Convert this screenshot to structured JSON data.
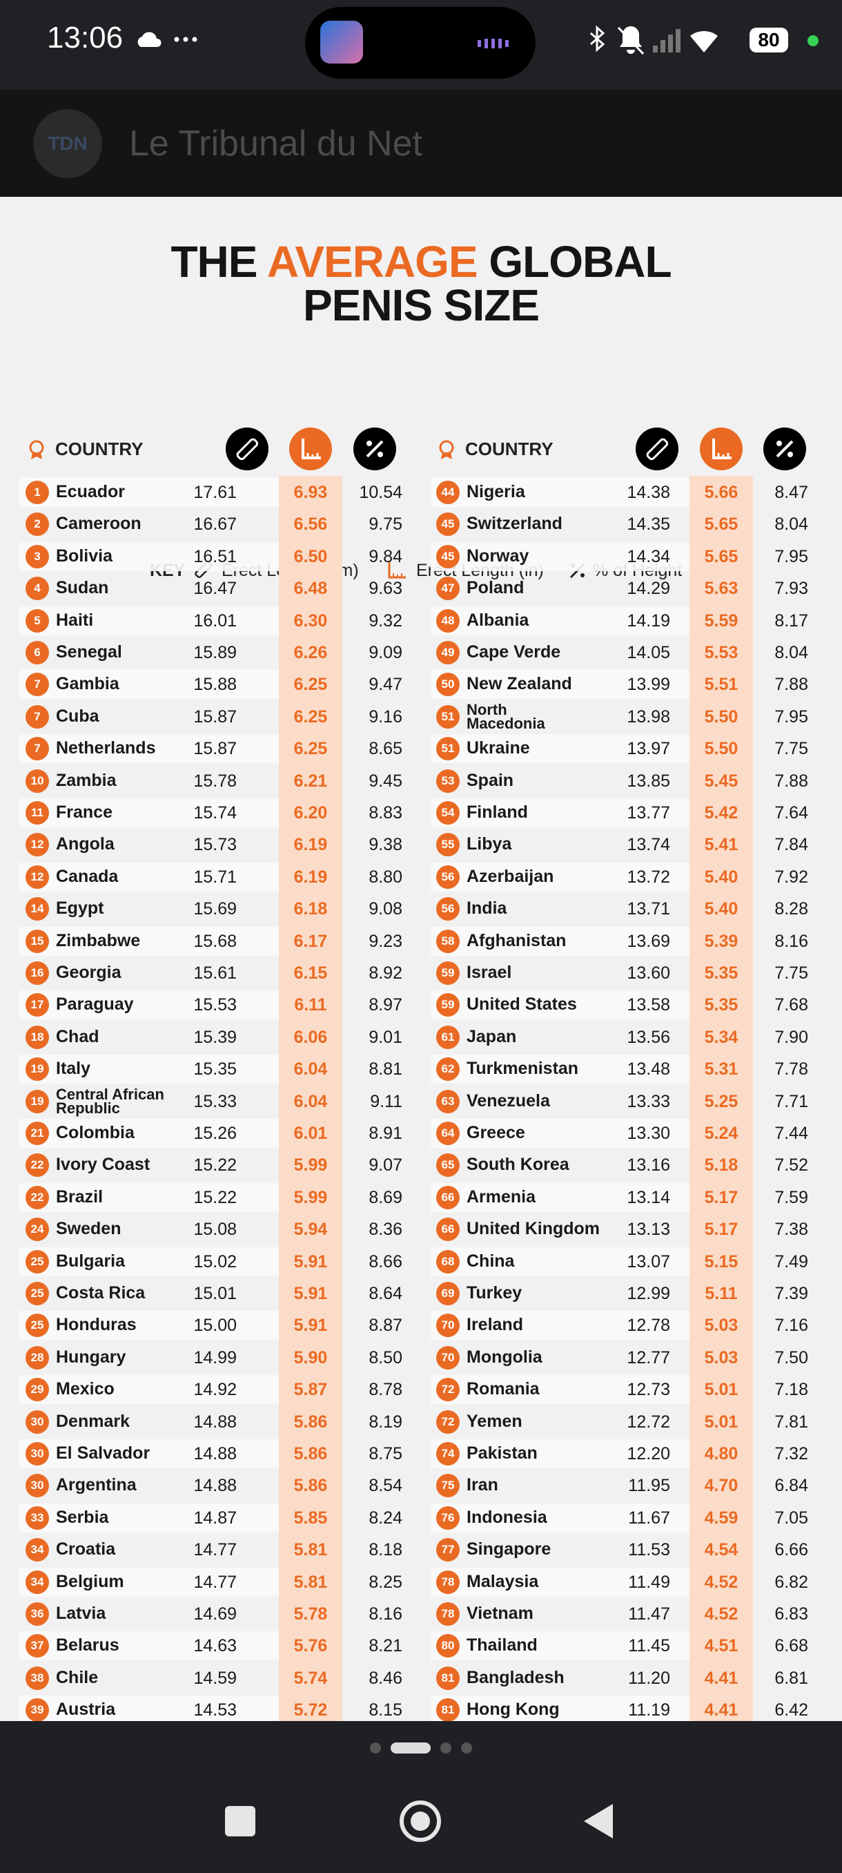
{
  "status_bar": {
    "time": "13:06",
    "battery": "80"
  },
  "app_bar": {
    "logo": "TDN",
    "title": "Le Tribunal du Net"
  },
  "infographic": {
    "title": {
      "part1": "THE",
      "highlight": "AVERAGE",
      "part2": "GLOBAL",
      "line2": "PENIS SIZE"
    },
    "key": {
      "label": "KEY",
      "items": [
        "Erect Length (cm)",
        "Erect Length (in)",
        "% of Height"
      ]
    },
    "column_header": "COUNTRY",
    "left_rows": [
      [
        "1",
        "Ecuador",
        "17.61",
        "6.93",
        "10.54"
      ],
      [
        "2",
        "Cameroon",
        "16.67",
        "6.56",
        "9.75"
      ],
      [
        "3",
        "Bolivia",
        "16.51",
        "6.50",
        "9.84"
      ],
      [
        "4",
        "Sudan",
        "16.47",
        "6.48",
        "9.63"
      ],
      [
        "5",
        "Haiti",
        "16.01",
        "6.30",
        "9.32"
      ],
      [
        "6",
        "Senegal",
        "15.89",
        "6.26",
        "9.09"
      ],
      [
        "7",
        "Gambia",
        "15.88",
        "6.25",
        "9.47"
      ],
      [
        "7",
        "Cuba",
        "15.87",
        "6.25",
        "9.16"
      ],
      [
        "7",
        "Netherlands",
        "15.87",
        "6.25",
        "8.65"
      ],
      [
        "10",
        "Zambia",
        "15.78",
        "6.21",
        "9.45"
      ],
      [
        "11",
        "France",
        "15.74",
        "6.20",
        "8.83"
      ],
      [
        "12",
        "Angola",
        "15.73",
        "6.19",
        "9.38"
      ],
      [
        "12",
        "Canada",
        "15.71",
        "6.19",
        "8.80"
      ],
      [
        "14",
        "Egypt",
        "15.69",
        "6.18",
        "9.08"
      ],
      [
        "15",
        "Zimbabwe",
        "15.68",
        "6.17",
        "9.23"
      ],
      [
        "16",
        "Georgia",
        "15.61",
        "6.15",
        "8.92"
      ],
      [
        "17",
        "Paraguay",
        "15.53",
        "6.11",
        "8.97"
      ],
      [
        "18",
        "Chad",
        "15.39",
        "6.06",
        "9.01"
      ],
      [
        "19",
        "Italy",
        "15.35",
        "6.04",
        "8.81"
      ],
      [
        "19",
        "Central African Republic",
        "15.33",
        "6.04",
        "9.11"
      ],
      [
        "21",
        "Colombia",
        "15.26",
        "6.01",
        "8.91"
      ],
      [
        "22",
        "Ivory Coast",
        "15.22",
        "5.99",
        "9.07"
      ],
      [
        "22",
        "Brazil",
        "15.22",
        "5.99",
        "8.69"
      ],
      [
        "24",
        "Sweden",
        "15.08",
        "5.94",
        "8.36"
      ],
      [
        "25",
        "Bulgaria",
        "15.02",
        "5.91",
        "8.66"
      ],
      [
        "25",
        "Costa Rica",
        "15.01",
        "5.91",
        "8.64"
      ],
      [
        "25",
        "Honduras",
        "15.00",
        "5.91",
        "8.87"
      ],
      [
        "28",
        "Hungary",
        "14.99",
        "5.90",
        "8.50"
      ],
      [
        "29",
        "Mexico",
        "14.92",
        "5.87",
        "8.78"
      ],
      [
        "30",
        "Denmark",
        "14.88",
        "5.86",
        "8.19"
      ],
      [
        "30",
        "El Salvador",
        "14.88",
        "5.86",
        "8.75"
      ],
      [
        "30",
        "Argentina",
        "14.88",
        "5.86",
        "8.54"
      ],
      [
        "33",
        "Serbia",
        "14.87",
        "5.85",
        "8.24"
      ],
      [
        "34",
        "Croatia",
        "14.77",
        "5.81",
        "8.18"
      ],
      [
        "34",
        "Belgium",
        "14.77",
        "5.81",
        "8.25"
      ],
      [
        "36",
        "Latvia",
        "14.69",
        "5.78",
        "8.16"
      ],
      [
        "37",
        "Belarus",
        "14.63",
        "5.76",
        "8.21"
      ],
      [
        "38",
        "Chile",
        "14.59",
        "5.74",
        "8.46"
      ],
      [
        "39",
        "Austria",
        "14.53",
        "5.72",
        "8.15"
      ]
    ],
    "right_rows": [
      [
        "44",
        "Nigeria",
        "14.38",
        "5.66",
        "8.47"
      ],
      [
        "45",
        "Switzerland",
        "14.35",
        "5.65",
        "8.04"
      ],
      [
        "45",
        "Norway",
        "14.34",
        "5.65",
        "7.95"
      ],
      [
        "47",
        "Poland",
        "14.29",
        "5.63",
        "7.93"
      ],
      [
        "48",
        "Albania",
        "14.19",
        "5.59",
        "8.17"
      ],
      [
        "49",
        "Cape Verde",
        "14.05",
        "5.53",
        "8.04"
      ],
      [
        "50",
        "New Zealand",
        "13.99",
        "5.51",
        "7.88"
      ],
      [
        "51",
        "North Macedonia",
        "13.98",
        "5.50",
        "7.95"
      ],
      [
        "51",
        "Ukraine",
        "13.97",
        "5.50",
        "7.75"
      ],
      [
        "53",
        "Spain",
        "13.85",
        "5.45",
        "7.88"
      ],
      [
        "54",
        "Finland",
        "13.77",
        "5.42",
        "7.64"
      ],
      [
        "55",
        "Libya",
        "13.74",
        "5.41",
        "7.84"
      ],
      [
        "56",
        "Azerbaijan",
        "13.72",
        "5.40",
        "7.92"
      ],
      [
        "56",
        "India",
        "13.71",
        "5.40",
        "8.28"
      ],
      [
        "58",
        "Afghanistan",
        "13.69",
        "5.39",
        "8.16"
      ],
      [
        "59",
        "Israel",
        "13.60",
        "5.35",
        "7.75"
      ],
      [
        "59",
        "United States",
        "13.58",
        "5.35",
        "7.68"
      ],
      [
        "61",
        "Japan",
        "13.56",
        "5.34",
        "7.90"
      ],
      [
        "62",
        "Turkmenistan",
        "13.48",
        "5.31",
        "7.78"
      ],
      [
        "63",
        "Venezuela",
        "13.33",
        "5.25",
        "7.71"
      ],
      [
        "64",
        "Greece",
        "13.30",
        "5.24",
        "7.44"
      ],
      [
        "65",
        "South Korea",
        "13.16",
        "5.18",
        "7.52"
      ],
      [
        "66",
        "Armenia",
        "13.14",
        "5.17",
        "7.59"
      ],
      [
        "66",
        "United Kingdom",
        "13.13",
        "5.17",
        "7.38"
      ],
      [
        "68",
        "China",
        "13.07",
        "5.15",
        "7.49"
      ],
      [
        "69",
        "Turkey",
        "12.99",
        "5.11",
        "7.39"
      ],
      [
        "70",
        "Ireland",
        "12.78",
        "5.03",
        "7.16"
      ],
      [
        "70",
        "Mongolia",
        "12.77",
        "5.03",
        "7.50"
      ],
      [
        "72",
        "Romania",
        "12.73",
        "5.01",
        "7.18"
      ],
      [
        "72",
        "Yemen",
        "12.72",
        "5.01",
        "7.81"
      ],
      [
        "74",
        "Pakistan",
        "12.20",
        "4.80",
        "7.32"
      ],
      [
        "75",
        "Iran",
        "11.95",
        "4.70",
        "6.84"
      ],
      [
        "76",
        "Indonesia",
        "11.67",
        "4.59",
        "7.05"
      ],
      [
        "77",
        "Singapore",
        "11.53",
        "4.54",
        "6.66"
      ],
      [
        "78",
        "Malaysia",
        "11.49",
        "4.52",
        "6.82"
      ],
      [
        "78",
        "Vietnam",
        "11.47",
        "4.52",
        "6.83"
      ],
      [
        "80",
        "Thailand",
        "11.45",
        "4.51",
        "6.68"
      ],
      [
        "81",
        "Bangladesh",
        "11.20",
        "4.41",
        "6.81"
      ],
      [
        "81",
        "Hong Kong",
        "11.19",
        "4.41",
        "6.42"
      ]
    ]
  }
}
